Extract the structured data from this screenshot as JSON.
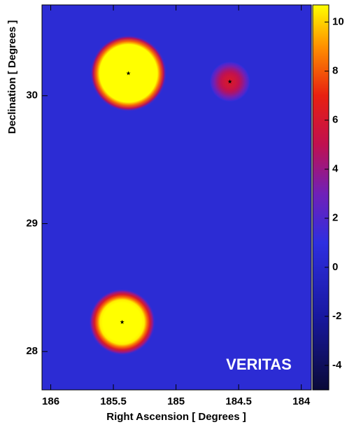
{
  "chart_data": {
    "type": "skymap",
    "xlabel": "Right Ascension [ Degrees ]",
    "ylabel": "Declination [ Degrees ]",
    "annotation": "VERITAS",
    "xlim": [
      186.07,
      183.92
    ],
    "xticks": [
      186,
      185.5,
      185,
      184.5,
      184
    ],
    "ylim": [
      27.7,
      30.71
    ],
    "yticks": [
      28,
      29,
      30
    ],
    "clim": [
      -5,
      10.7
    ],
    "cticks": [
      -4,
      -2,
      0,
      2,
      4,
      6,
      8,
      10
    ],
    "colormap": [
      {
        "value": -5,
        "color": "#0a0a38"
      },
      {
        "value": -2,
        "color": "#1818a0"
      },
      {
        "value": 1,
        "color": "#2e2ee0"
      },
      {
        "value": 3,
        "color": "#7020b8"
      },
      {
        "value": 5,
        "color": "#c01050"
      },
      {
        "value": 7,
        "color": "#e82010"
      },
      {
        "value": 9,
        "color": "#ff9000"
      },
      {
        "value": 10.7,
        "color": "#ffff00"
      }
    ],
    "sources": [
      {
        "ra": 185.38,
        "dec": 30.175,
        "radius": 0.3,
        "peak": 25
      },
      {
        "ra": 184.57,
        "dec": 30.11,
        "radius": 0.16,
        "peak": 6
      },
      {
        "ra": 185.43,
        "dec": 28.23,
        "radius": 0.26,
        "peak": 18
      }
    ]
  }
}
